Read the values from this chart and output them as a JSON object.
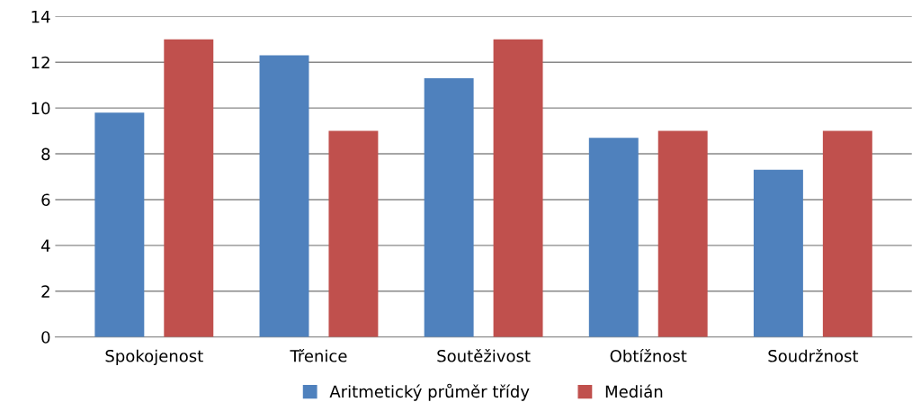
{
  "chart_data": {
    "type": "bar",
    "categories": [
      "Spokojenost",
      "Třenice",
      "Soutěživost",
      "Obtížnost",
      "Soudržnost"
    ],
    "series": [
      {
        "name": "Aritmetický průměr třídy",
        "color": "#4f81bd",
        "values": [
          9.8,
          12.3,
          11.3,
          8.7,
          7.3
        ]
      },
      {
        "name": "Medián",
        "color": "#c0504d",
        "values": [
          13,
          9,
          13,
          9,
          9
        ]
      }
    ],
    "ylim": [
      0,
      14
    ],
    "yticks": [
      0,
      2,
      4,
      6,
      8,
      10,
      12,
      14
    ],
    "grid": "y",
    "legend": "bottom"
  }
}
